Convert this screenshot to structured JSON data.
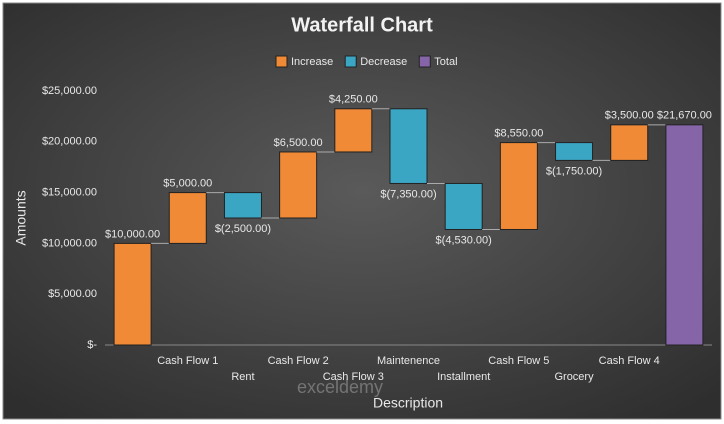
{
  "chart_data": {
    "type": "waterfall",
    "title": "Waterfall Chart",
    "x_label": "Description",
    "y_label": "Amounts",
    "categories": [
      null,
      "Cash Flow 1",
      "Rent",
      "Cash Flow 2",
      "Cash Flow 3",
      "Maintenence",
      "Installment",
      "Cash Flow 5",
      "Grocery",
      "Cash Flow 4",
      null
    ],
    "series": [
      {
        "name": "Increase",
        "color": "#f08a36",
        "values": [
          10000,
          5000,
          null,
          6500,
          4250,
          null,
          null,
          8550,
          null,
          3500,
          null
        ],
        "value_labels": [
          "$10,000.00",
          "$5,000.00",
          null,
          "$6,500.00",
          "$4,250.00",
          null,
          null,
          "$8,550.00",
          null,
          "$3,500.00",
          null
        ]
      },
      {
        "name": "Decrease",
        "color": "#3ba6c4",
        "values": [
          null,
          null,
          -2500,
          null,
          null,
          -7350,
          -4530,
          null,
          -1750,
          null,
          null
        ],
        "value_labels": [
          null,
          null,
          "$(2,500.00)",
          null,
          null,
          "$(7,350.00)",
          "$(4,530.00)",
          null,
          "$(1,750.00)",
          null,
          null
        ]
      },
      {
        "name": "Total",
        "color": "#8565a8",
        "values": [
          null,
          null,
          null,
          null,
          null,
          null,
          null,
          null,
          null,
          null,
          21670
        ],
        "value_labels": [
          null,
          null,
          null,
          null,
          null,
          null,
          null,
          null,
          null,
          null,
          "$21,670.00"
        ]
      }
    ],
    "ylim": [
      0,
      25000
    ],
    "yticks": [
      {
        "value": 0,
        "label": "$-"
      },
      {
        "value": 5000,
        "label": "$5,000.00"
      },
      {
        "value": 10000,
        "label": "$10,000.00"
      },
      {
        "value": 15000,
        "label": "$15,000.00"
      },
      {
        "value": 20000,
        "label": "$20,000.00"
      },
      {
        "value": 25000,
        "label": "$25,000.00"
      }
    ],
    "grid": false,
    "legend": "top",
    "watermark": "exceldemy"
  }
}
